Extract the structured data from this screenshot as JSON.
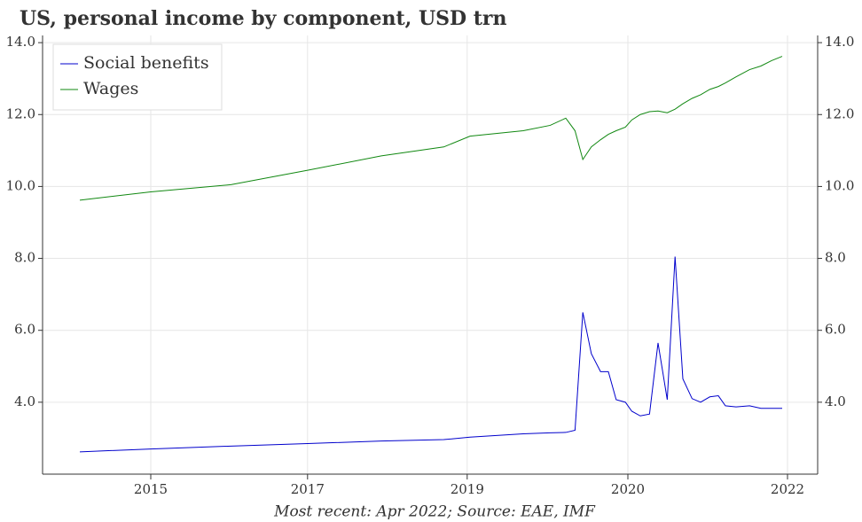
{
  "chart_data": {
    "type": "line",
    "title": "US, personal income by component, USD trn",
    "footnote": "Most recent: Apr 2022; Source: EAE, IMF",
    "x": [
      0,
      10,
      21.3,
      32.1,
      42.5,
      51.3,
      55,
      62.5,
      66.3,
      68.5,
      69.8,
      70.9,
      72.1,
      73.4,
      74.5,
      75.6,
      76.9,
      77.8,
      79,
      80.3,
      81.5,
      82.8,
      83.9,
      85,
      86.3,
      87.5,
      88.8,
      90,
      91,
      92.5,
      94.4,
      96,
      97.5,
      99
    ],
    "series": [
      {
        "name": "Social benefits",
        "color": "#0000cc",
        "values": [
          2.62,
          2.7,
          2.78,
          2.85,
          2.92,
          2.96,
          3.03,
          3.12,
          3.15,
          3.16,
          3.22,
          6.5,
          5.35,
          4.85,
          4.85,
          4.07,
          4.0,
          3.75,
          3.62,
          3.67,
          5.65,
          4.07,
          8.05,
          4.65,
          4.1,
          4.0,
          4.15,
          4.18,
          3.9,
          3.87,
          3.9,
          3.83,
          3.83,
          3.83
        ]
      },
      {
        "name": "Wages",
        "color": "#118811",
        "values": [
          9.62,
          9.85,
          10.05,
          10.45,
          10.85,
          11.1,
          11.4,
          11.55,
          11.7,
          11.9,
          11.55,
          10.75,
          11.1,
          11.3,
          11.45,
          11.55,
          11.65,
          11.85,
          12.0,
          12.08,
          12.1,
          12.05,
          12.15,
          12.3,
          12.45,
          12.55,
          12.7,
          12.78,
          12.88,
          13.05,
          13.25,
          13.35,
          13.5,
          13.62
        ]
      }
    ],
    "xlim": [
      -5.25,
      104
    ],
    "xticks": [
      {
        "value": 10,
        "label": "2015"
      },
      {
        "value": 32.1,
        "label": "2017"
      },
      {
        "value": 54.6,
        "label": "2019"
      },
      {
        "value": 77.25,
        "label": "2020"
      },
      {
        "value": 99.75,
        "label": "2022"
      }
    ],
    "ylim": [
      2.0,
      14.2
    ],
    "yticks": [
      {
        "value": 4,
        "label": "4.0"
      },
      {
        "value": 6,
        "label": "6.0"
      },
      {
        "value": 8,
        "label": "8.0"
      },
      {
        "value": 10,
        "label": "10.0"
      },
      {
        "value": 12,
        "label": "12.0"
      },
      {
        "value": 14,
        "label": "14.0"
      }
    ],
    "grid": true,
    "legend": "upper left"
  }
}
